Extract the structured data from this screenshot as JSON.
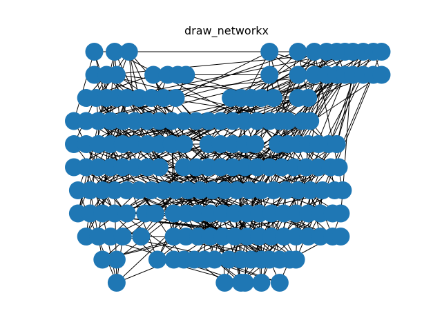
{
  "title": "draw_networkx",
  "colors": {
    "node": "#1f77b4",
    "edge": "#000000",
    "background": "#ffffff"
  },
  "chart_data": {
    "type": "network",
    "title": "draw_networkx",
    "node_color": "#1f77b4",
    "edge_color": "#000000",
    "axes_visible": false,
    "rows": [
      {
        "y": 10,
        "x": [
          1.0,
          2.0,
          2.7,
          9.6,
          11.0,
          11.8,
          12.4,
          12.9,
          13.3,
          13.7,
          14.2,
          14.7,
          15.1
        ]
      },
      {
        "y": 9,
        "x": [
          1.0,
          1.6,
          2.1,
          3.9,
          4.6,
          5.1,
          5.5,
          9.6,
          11.0,
          11.8,
          12.4,
          12.9,
          13.3,
          13.7,
          14.2,
          14.7,
          15.1
        ]
      },
      {
        "y": 8,
        "x": [
          0.6,
          1.1,
          1.6,
          2.1,
          2.6,
          3.2,
          3.8,
          4.4,
          5.0,
          7.7,
          8.2,
          8.7,
          9.2,
          9.8,
          11.0,
          11.5
        ]
      },
      {
        "y": 7,
        "x": [
          0.0,
          0.6,
          1.2,
          1.8,
          2.4,
          3.0,
          3.6,
          4.2,
          4.8,
          5.4,
          6.0,
          6.6,
          7.2,
          7.8,
          8.4,
          9.0,
          9.6,
          10.1,
          10.5,
          11.2,
          11.6
        ]
      },
      {
        "y": 6,
        "x": [
          0.0,
          0.6,
          1.2,
          1.8,
          2.4,
          3.0,
          3.6,
          4.2,
          4.8,
          5.4,
          6.6,
          7.2,
          7.8,
          8.4,
          8.9,
          10.0,
          10.5,
          11.0,
          11.5,
          12.0,
          12.5,
          12.9
        ]
      },
      {
        "y": 5,
        "x": [
          0.0,
          0.6,
          1.2,
          1.8,
          2.4,
          3.0,
          3.6,
          4.2,
          5.4,
          6.0,
          6.6,
          7.2,
          7.8,
          8.4,
          9.0,
          9.6,
          10.2,
          10.8,
          11.4,
          12.0,
          12.6,
          13.0
        ]
      },
      {
        "y": 4,
        "x": [
          0.2,
          0.8,
          1.4,
          2.0,
          2.6,
          3.2,
          3.8,
          4.4,
          5.0,
          5.6,
          6.2,
          6.8,
          7.4,
          8.0,
          8.6,
          9.2,
          9.8,
          10.4,
          11.0,
          11.6,
          12.2,
          12.8,
          13.2
        ]
      },
      {
        "y": 3,
        "x": [
          0.2,
          0.8,
          1.4,
          2.0,
          2.6,
          3.5,
          4.0,
          4.9,
          5.5,
          6.1,
          6.7,
          7.3,
          7.9,
          8.5,
          9.1,
          9.7,
          10.3,
          10.9,
          11.5,
          12.1,
          12.7,
          13.1
        ]
      },
      {
        "y": 2,
        "x": [
          0.6,
          1.2,
          1.8,
          2.4,
          3.3,
          4.9,
          5.5,
          6.1,
          6.7,
          7.3,
          7.9,
          8.5,
          9.1,
          9.7,
          10.3,
          10.9,
          11.5,
          12.1,
          12.7,
          13.1
        ]
      },
      {
        "y": 1,
        "x": [
          1.4,
          2.1,
          4.1,
          4.9,
          5.4,
          5.9,
          6.4,
          6.9,
          7.6,
          8.2,
          8.7,
          9.2,
          9.6,
          10.1,
          10.6,
          10.9
        ]
      },
      {
        "y": 0,
        "x": [
          2.1,
          7.4,
          8.2,
          8.4,
          9.2,
          10.1
        ]
      }
    ],
    "edge_seed": 7,
    "edge_count": 520
  }
}
